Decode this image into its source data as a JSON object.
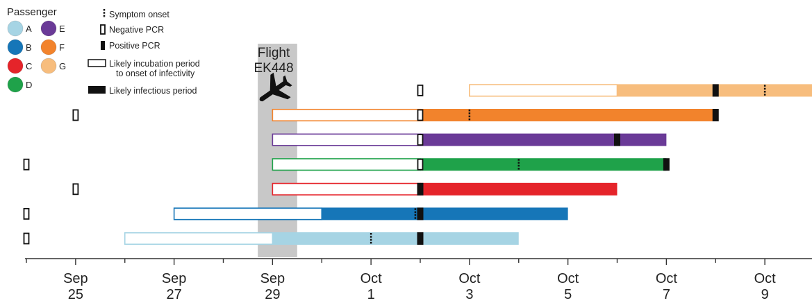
{
  "chart_data": {
    "type": "timeline",
    "title": "",
    "xlabel": "",
    "ylabel": "",
    "x_axis": {
      "min": "Sep 24",
      "max": "Oct 10",
      "ticks": [
        {
          "month": "Sep",
          "day": "25"
        },
        {
          "month": "Sep",
          "day": "27"
        },
        {
          "month": "Sep",
          "day": "29"
        },
        {
          "month": "Oct",
          "day": "1"
        },
        {
          "month": "Oct",
          "day": "3"
        },
        {
          "month": "Oct",
          "day": "5"
        },
        {
          "month": "Oct",
          "day": "7"
        },
        {
          "month": "Oct",
          "day": "9"
        }
      ]
    },
    "flight": {
      "label_line1": "Flight",
      "label_line2": "EK448",
      "start": "Sep 28.7",
      "end": "Sep 29.5",
      "color": "#c8c8c8"
    },
    "legend": {
      "passenger_title": "Passenger",
      "passengers": [
        {
          "id": "A",
          "color": "#a6d4e4"
        },
        {
          "id": "B",
          "color": "#1676b8"
        },
        {
          "id": "C",
          "color": "#e5242a"
        },
        {
          "id": "D",
          "color": "#1fa24a"
        },
        {
          "id": "E",
          "color": "#6a3a97"
        },
        {
          "id": "F",
          "color": "#f2832c"
        },
        {
          "id": "G",
          "color": "#f7bd7d"
        }
      ],
      "symptom_onset": "Symptom onset",
      "negative_pcr": "Negative PCR",
      "positive_pcr": "Positive PCR",
      "incubation_line1": "Likely incubation period",
      "incubation_line2": "to onset of infectivity",
      "infectious": "Likely infectious period"
    },
    "series": [
      {
        "name": "A",
        "color": "#a6d4e4",
        "incubation": [
          "Sep 26",
          "Sep 29"
        ],
        "infectious": [
          "Sep 29",
          "Oct 4"
        ],
        "negative_pcr": [
          "Sep 24"
        ],
        "positive_pcr": [
          "Oct 2"
        ],
        "symptom_onset": "Oct 1"
      },
      {
        "name": "B",
        "color": "#1676b8",
        "incubation": [
          "Sep 27",
          "Sep 30"
        ],
        "infectious": [
          "Sep 30",
          "Oct 5"
        ],
        "negative_pcr": [
          "Sep 24"
        ],
        "positive_pcr": [
          "Oct 2"
        ],
        "symptom_onset": "Oct 1.9"
      },
      {
        "name": "C",
        "color": "#e5242a",
        "incubation": [
          "Sep 29",
          "Oct 2"
        ],
        "infectious": [
          "Oct 2",
          "Oct 6"
        ],
        "negative_pcr": [
          "Sep 25"
        ],
        "positive_pcr": [
          "Oct 2"
        ],
        "symptom_onset": null
      },
      {
        "name": "D",
        "color": "#1fa24a",
        "incubation": [
          "Sep 29",
          "Oct 2"
        ],
        "infectious": [
          "Oct 2",
          "Oct 7"
        ],
        "negative_pcr": [
          "Sep 24",
          "Oct 2"
        ],
        "positive_pcr": [
          "Oct 7"
        ],
        "symptom_onset": "Oct 4"
      },
      {
        "name": "E",
        "color": "#6a3a97",
        "incubation": [
          "Sep 29",
          "Oct 2"
        ],
        "infectious": [
          "Oct 2",
          "Oct 7"
        ],
        "negative_pcr": [
          "Oct 2"
        ],
        "positive_pcr": [
          "Oct 6"
        ],
        "symptom_onset": null
      },
      {
        "name": "F",
        "color": "#f2832c",
        "incubation": [
          "Sep 29",
          "Oct 2"
        ],
        "infectious": [
          "Oct 2",
          "Oct 8"
        ],
        "negative_pcr": [
          "Sep 25",
          "Oct 2"
        ],
        "positive_pcr": [
          "Oct 8"
        ],
        "symptom_onset": "Oct 3"
      },
      {
        "name": "G",
        "color": "#f7bd7d",
        "incubation": [
          "Oct 3",
          "Oct 6"
        ],
        "infectious": [
          "Oct 6",
          "Oct 10"
        ],
        "negative_pcr": [
          "Oct 2"
        ],
        "positive_pcr": [
          "Oct 8"
        ],
        "symptom_onset": "Oct 9"
      }
    ]
  }
}
